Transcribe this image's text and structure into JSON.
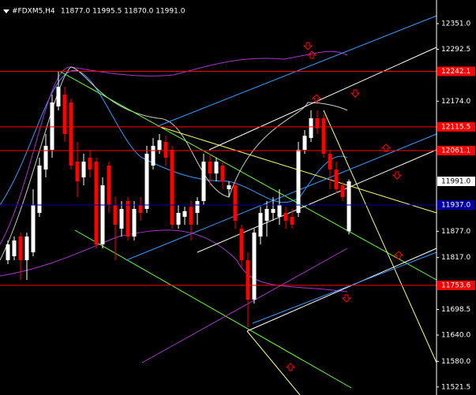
{
  "chart_data": {
    "type": "candlestick",
    "title": "#FDXM5,H4",
    "subtitle": "11877.0 11995.5 11870.0 11991.0",
    "categories": [
      null,
      null,
      null,
      null,
      null,
      null,
      null,
      null,
      null,
      null,
      null,
      null,
      null,
      null,
      null,
      null,
      null,
      null,
      null,
      null,
      null,
      null,
      null,
      null,
      null,
      null,
      null,
      null,
      null,
      null,
      null,
      null,
      null,
      null,
      null,
      null,
      null,
      null,
      null,
      null,
      null,
      null,
      null,
      null,
      null,
      null,
      null,
      null,
      null,
      null,
      null,
      null,
      null,
      null,
      null
    ],
    "open": [
      11811,
      11820,
      11865,
      11811,
      11829,
      11919,
      12018,
      12063,
      12162,
      12189,
      12171,
      12036,
      12000,
      12045,
      12036,
      11847,
      12027,
      11937,
      11883,
      11946,
      11865,
      11937,
      11928,
      12027,
      12063,
      12081,
      12063,
      11892,
      11910,
      11933,
      11919,
      11946,
      12036,
      12009,
      12027,
      11973,
      11982,
      11883,
      11811,
      11721,
      11865,
      11901,
      11919,
      11910,
      11919,
      11910,
      11919,
      12063,
      12090,
      12135,
      12135,
      12054,
      12018,
      11982,
      11877
    ],
    "high": [
      11856,
      11865,
      11874,
      11874,
      11973,
      12045,
      12099,
      12189,
      12243,
      12207,
      12180,
      12081,
      12054,
      12063,
      12045,
      12000,
      12036,
      11955,
      11946,
      11955,
      11946,
      11955,
      12072,
      12090,
      12099,
      12095,
      12072,
      11937,
      11933,
      11946,
      11955,
      12054,
      12054,
      12045,
      12036,
      11991,
      11991,
      11892,
      11829,
      11883,
      11933,
      11946,
      11955,
      11973,
      11933,
      11928,
      12081,
      12108,
      12153,
      12153,
      12144,
      12063,
      12036,
      11991,
      11995.5
    ],
    "low": [
      11802,
      11811,
      11766,
      11766,
      11820,
      11910,
      12000,
      12045,
      12153,
      12081,
      12018,
      11955,
      11982,
      12000,
      11838,
      11838,
      11919,
      11811,
      11865,
      11856,
      11856,
      11901,
      11919,
      12018,
      12054,
      12027,
      11883,
      11883,
      11892,
      11856,
      11892,
      11937,
      11982,
      11991,
      11973,
      11955,
      11883,
      11793,
      11658,
      11712,
      11847,
      11865,
      11901,
      11892,
      11883,
      11883,
      11910,
      12054,
      12081,
      12099,
      12045,
      11973,
      11964,
      11946,
      11870
    ],
    "close": [
      11847,
      11856,
      11811,
      11865,
      11937,
      12027,
      12072,
      12171,
      12207,
      12099,
      12027,
      11991,
      12036,
      12018,
      11847,
      11982,
      11937,
      11892,
      11928,
      11865,
      11928,
      11919,
      12054,
      12072,
      12085,
      12045,
      11892,
      11919,
      11923,
      11892,
      11946,
      12036,
      12009,
      12036,
      11991,
      11982,
      11901,
      11811,
      11721,
      11874,
      11919,
      11928,
      11928,
      11937,
      11901,
      11892,
      12063,
      12095,
      12135,
      12112,
      12054,
      12018,
      11973,
      11955,
      11991
    ],
    "up_color": "#ffffff",
    "down_color": "#ff0000",
    "ylim": [
      11503.2,
      12405
    ],
    "yticks": [
      {
        "value": 12351,
        "label": "12351.0"
      },
      12292.5,
      {
        "value": 12174,
        "label": "12174.0"
      },
      {
        "value": 11877,
        "label": "11877.0"
      },
      {
        "value": 11817,
        "label": "11817.0"
      },
      11698.5,
      {
        "value": 11640,
        "label": "11640.0"
      },
      {
        "value": 11580,
        "label": "11580.0"
      },
      11521.5
    ],
    "levels": [
      {
        "value": 12242.1,
        "label": "12242.1",
        "color": "#ff0000"
      },
      {
        "value": 12115.5,
        "label": "12115.5",
        "color": "#ff0000"
      },
      {
        "value": 12061.1,
        "label": "12061.1",
        "color": "#ff0000"
      },
      {
        "value": 11753.6,
        "label": "11753.6",
        "color": "#ff0000"
      },
      {
        "value": 11937,
        "label": "11937.0",
        "color": "#0000a0"
      }
    ],
    "current": {
      "value": 11991,
      "label": "11991.0",
      "color": "#ffffff"
    }
  }
}
